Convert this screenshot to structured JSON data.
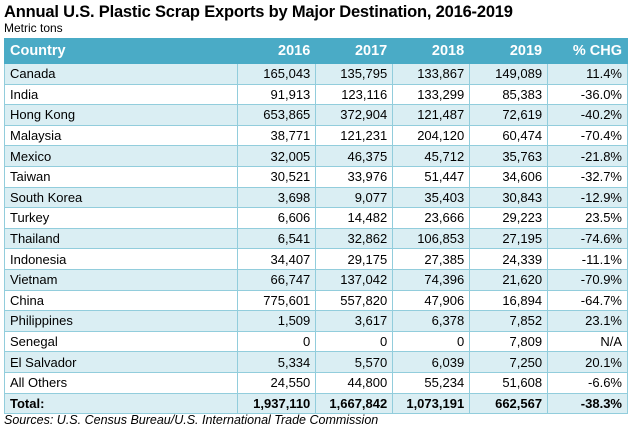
{
  "title": "Annual U.S. Plastic Scrap Exports by Major Destination, 2016-2019",
  "subtitle": "Metric tons",
  "table": {
    "headers": [
      "Country",
      "2016",
      "2017",
      "2018",
      "2019",
      "% CHG"
    ],
    "rows": [
      [
        "Canada",
        "165,043",
        "135,795",
        "133,867",
        "149,089",
        "11.4%"
      ],
      [
        "India",
        "91,913",
        "123,116",
        "133,299",
        "85,383",
        "-36.0%"
      ],
      [
        "Hong Kong",
        "653,865",
        "372,904",
        "121,487",
        "72,619",
        "-40.2%"
      ],
      [
        "Malaysia",
        "38,771",
        "121,231",
        "204,120",
        "60,474",
        "-70.4%"
      ],
      [
        "Mexico",
        "32,005",
        "46,375",
        "45,712",
        "35,763",
        "-21.8%"
      ],
      [
        "Taiwan",
        "30,521",
        "33,976",
        "51,447",
        "34,606",
        "-32.7%"
      ],
      [
        "South Korea",
        "3,698",
        "9,077",
        "35,403",
        "30,843",
        "-12.9%"
      ],
      [
        "Turkey",
        "6,606",
        "14,482",
        "23,666",
        "29,223",
        "23.5%"
      ],
      [
        "Thailand",
        "6,541",
        "32,862",
        "106,853",
        "27,195",
        "-74.6%"
      ],
      [
        "Indonesia",
        "34,407",
        "29,175",
        "27,385",
        "24,339",
        "-11.1%"
      ],
      [
        "Vietnam",
        "66,747",
        "137,042",
        "74,396",
        "21,620",
        "-70.9%"
      ],
      [
        "China",
        "775,601",
        "557,820",
        "47,906",
        "16,894",
        "-64.7%"
      ],
      [
        "Philippines",
        "1,509",
        "3,617",
        "6,378",
        "7,852",
        "23.1%"
      ],
      [
        "Senegal",
        "0",
        "0",
        "0",
        "7,809",
        "N/A"
      ],
      [
        "El Salvador",
        "5,334",
        "5,570",
        "6,039",
        "7,250",
        "20.1%"
      ],
      [
        "All Others",
        "24,550",
        "44,800",
        "55,234",
        "51,608",
        "-6.6%"
      ]
    ],
    "total": [
      "Total:",
      "1,937,110",
      "1,667,842",
      "1,073,191",
      "662,567",
      "-38.3%"
    ]
  },
  "source": "Sources: U.S. Census Bureau/U.S. International Trade Commission",
  "colors": {
    "header_bg": "#4aabc6",
    "alt_row_bg": "#daeef3",
    "border": "#92cddc"
  }
}
